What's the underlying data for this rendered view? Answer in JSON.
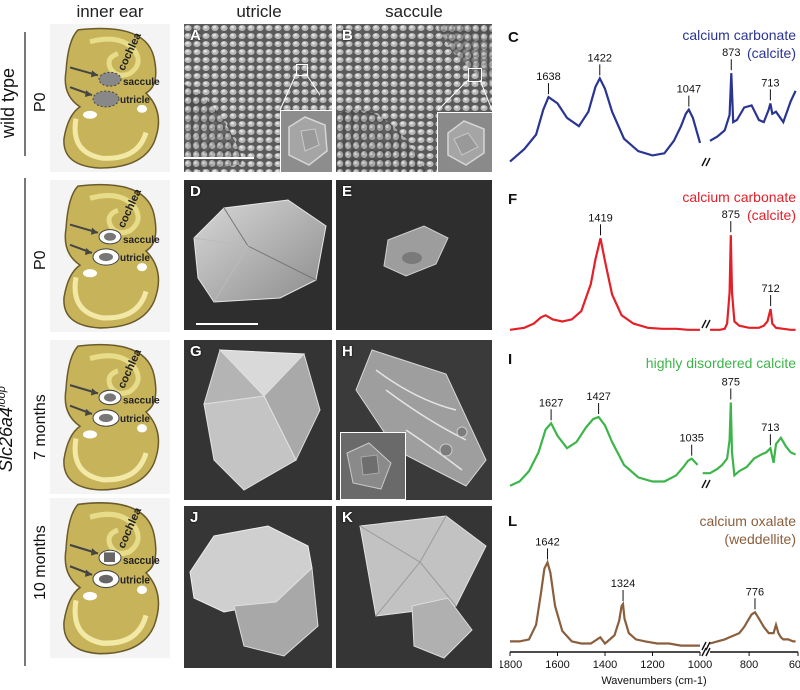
{
  "columns": {
    "inner_ear": "inner ear",
    "utricle": "utricle",
    "saccule": "saccule"
  },
  "groups": {
    "wild_type": "wild type",
    "mutant_prefix": "Slc26a4",
    "mutant_sup": "loop"
  },
  "rows": [
    {
      "age": "P0",
      "ear_labels": [
        "cochlea",
        "saccule",
        "utricle"
      ],
      "utricle_panel": "A",
      "saccule_panel": "B",
      "spec_panel": "C"
    },
    {
      "age": "P0",
      "ear_labels": [
        "cochlea",
        "saccule",
        "utricle"
      ],
      "utricle_panel": "D",
      "saccule_panel": "E",
      "spec_panel": "F"
    },
    {
      "age": "7 months",
      "ear_labels": [
        "cochlea",
        "saccule",
        "utricle"
      ],
      "utricle_panel": "G",
      "saccule_panel": "H",
      "spec_panel": "I"
    },
    {
      "age": "10 months",
      "ear_labels": [
        "cochlea",
        "saccule",
        "utricle"
      ],
      "utricle_panel": "J",
      "saccule_panel": "K",
      "spec_panel": "L"
    }
  ],
  "chart_data": [
    {
      "type": "line",
      "panel": "C",
      "title_lines": [
        "calcium carbonate",
        "(calcite)"
      ],
      "color": "#2a3592",
      "peaks": [
        1638,
        1422,
        1047,
        873,
        713
      ],
      "series": [
        {
          "x": [
            1800,
            1740,
            1690,
            1660,
            1638,
            1600,
            1560,
            1510,
            1470,
            1440,
            1422,
            1400,
            1370,
            1320,
            1260,
            1200,
            1150,
            1110,
            1080,
            1060,
            1047,
            1030,
            1000,
            960,
            930,
            900,
            880,
            873,
            865,
            850,
            820,
            790,
            760,
            740,
            720,
            713,
            705,
            690,
            660,
            630,
            610
          ],
          "y": [
            10,
            22,
            36,
            60,
            72,
            66,
            52,
            44,
            58,
            82,
            90,
            80,
            58,
            32,
            20,
            16,
            18,
            30,
            44,
            56,
            60,
            52,
            28,
            30,
            34,
            40,
            55,
            95,
            48,
            50,
            62,
            64,
            50,
            48,
            60,
            66,
            56,
            58,
            48,
            68,
            78
          ]
        }
      ]
    },
    {
      "type": "line",
      "panel": "F",
      "title_lines": [
        "calcium carbonate",
        "(calcite)"
      ],
      "color": "#e32028",
      "peaks": [
        1419,
        875,
        712
      ],
      "series": [
        {
          "x": [
            1800,
            1740,
            1700,
            1670,
            1650,
            1620,
            1580,
            1540,
            1500,
            1460,
            1440,
            1419,
            1400,
            1370,
            1330,
            1280,
            1220,
            1160,
            1100,
            1050,
            1000,
            960,
            940,
            920,
            900,
            890,
            880,
            875,
            870,
            860,
            840,
            800,
            760,
            740,
            725,
            712,
            705,
            690,
            660,
            630,
            610
          ],
          "y": [
            4,
            6,
            10,
            16,
            18,
            14,
            12,
            14,
            22,
            48,
            72,
            92,
            70,
            38,
            18,
            10,
            6,
            5,
            5,
            4,
            4,
            4,
            4,
            4,
            5,
            10,
            40,
            95,
            40,
            12,
            8,
            6,
            6,
            8,
            12,
            24,
            10,
            6,
            5,
            4,
            4
          ]
        }
      ]
    },
    {
      "type": "line",
      "panel": "I",
      "title_lines": [
        "highly disordered calcite"
      ],
      "color": "#3db54a",
      "peaks": [
        1627,
        1427,
        1035,
        875,
        713
      ],
      "series": [
        {
          "x": [
            1800,
            1760,
            1720,
            1680,
            1650,
            1627,
            1600,
            1560,
            1520,
            1480,
            1450,
            1427,
            1400,
            1370,
            1320,
            1260,
            1200,
            1150,
            1100,
            1070,
            1050,
            1035,
            1010,
            990,
            960,
            930,
            910,
            890,
            880,
            875,
            870,
            860,
            840,
            810,
            780,
            750,
            730,
            713,
            700,
            690,
            670,
            650,
            630,
            610
          ],
          "y": [
            8,
            12,
            22,
            40,
            62,
            68,
            56,
            44,
            50,
            64,
            72,
            74,
            66,
            50,
            28,
            16,
            12,
            12,
            18,
            26,
            32,
            34,
            28,
            20,
            20,
            24,
            28,
            34,
            52,
            88,
            40,
            18,
            22,
            26,
            34,
            38,
            40,
            44,
            30,
            48,
            54,
            46,
            40,
            38
          ]
        }
      ]
    },
    {
      "type": "line",
      "panel": "L",
      "title_lines": [
        "calcium oxalate",
        "(weddellite)"
      ],
      "color": "#8b5e3c",
      "peaks": [
        1642,
        1324,
        776
      ],
      "series": [
        {
          "x": [
            1800,
            1760,
            1720,
            1690,
            1670,
            1655,
            1642,
            1630,
            1610,
            1580,
            1540,
            1500,
            1460,
            1420,
            1400,
            1380,
            1360,
            1340,
            1330,
            1324,
            1318,
            1300,
            1270,
            1230,
            1180,
            1130,
            1080,
            1040,
            1000,
            960,
            930,
            900,
            880,
            860,
            840,
            820,
            800,
            790,
            776,
            760,
            740,
            720,
            700,
            690,
            680,
            670,
            660,
            640,
            620,
            610
          ],
          "y": [
            14,
            14,
            16,
            30,
            60,
            84,
            90,
            80,
            48,
            24,
            14,
            12,
            12,
            18,
            12,
            16,
            20,
            34,
            48,
            50,
            36,
            22,
            16,
            14,
            12,
            12,
            10,
            10,
            10,
            12,
            14,
            16,
            18,
            20,
            22,
            28,
            36,
            40,
            42,
            36,
            28,
            22,
            22,
            30,
            22,
            18,
            16,
            16,
            14,
            14
          ]
        }
      ]
    }
  ],
  "axis": {
    "label": "Wavenumbers (cm-1)",
    "ticks": [
      1800,
      1600,
      1400,
      1200,
      1000,
      800,
      600
    ]
  }
}
